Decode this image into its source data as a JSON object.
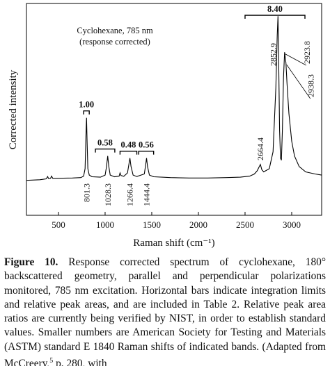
{
  "chart_data": {
    "type": "line",
    "annotation": [
      "Cyclohexane, 785 nm",
      "(response corrected)"
    ],
    "ylabel": "Corrected intensity",
    "xlabel": "Raman shift (cm⁻¹)",
    "x": [
      160,
      300,
      370,
      384,
      395,
      415,
      426,
      440,
      550,
      650,
      740,
      770,
      785,
      795,
      801,
      806,
      815,
      830,
      860,
      950,
      1000,
      1015,
      1028,
      1040,
      1055,
      1100,
      1150,
      1160,
      1170,
      1200,
      1240,
      1255,
      1266,
      1278,
      1300,
      1340,
      1420,
      1435,
      1444,
      1455,
      1475,
      1520,
      1700,
      1900,
      2100,
      2300,
      2450,
      2550,
      2600,
      2630,
      2664,
      2680,
      2700,
      2760,
      2800,
      2830,
      2845,
      2853,
      2860,
      2870,
      2880,
      2890,
      2900,
      2912,
      2924,
      2932,
      2938,
      2950,
      2970,
      3000,
      3030,
      3080,
      3150,
      3250,
      3320
    ],
    "values": [
      16.5,
      16.8,
      17.2,
      18.3,
      17.3,
      17.4,
      18.5,
      17.4,
      17.5,
      17.6,
      17.8,
      18.5,
      22,
      38,
      46,
      36,
      22,
      19,
      18.2,
      18,
      19,
      23,
      28,
      23,
      19,
      18.2,
      18.5,
      20,
      18.8,
      18.4,
      20,
      24,
      27,
      23,
      19,
      18.3,
      19.5,
      24,
      27,
      23,
      19,
      18.2,
      17.8,
      17.6,
      17.6,
      17.8,
      18,
      18.5,
      19.5,
      21,
      24,
      21.5,
      20.5,
      22,
      30,
      60,
      85,
      94,
      75,
      40,
      27,
      26,
      40,
      65,
      77,
      74,
      72,
      62,
      48,
      35,
      28,
      23,
      20.5,
      19.5,
      19
    ],
    "color": "#000000",
    "xlim": [
      157,
      3321
    ],
    "xticks": [
      500,
      1000,
      1500,
      2000,
      2500,
      3000
    ],
    "ylim": [
      0,
      100
    ],
    "peak_labels": [
      801.3,
      1028.3,
      1266.4,
      1444.4,
      2664.4,
      2852.9,
      2923.8,
      2938.3
    ],
    "integration_areas": [
      {
        "value": 1,
        "label": "1.00",
        "limits": [
          770,
          830
        ]
      },
      {
        "value": 0.58,
        "label": "0.58",
        "limits": [
          896,
          1104
        ]
      },
      {
        "value": 0.48,
        "label": "0.48",
        "limits": [
          1160,
          1340
        ]
      },
      {
        "value": 0.56,
        "label": "0.56",
        "limits": [
          1360,
          1520
        ]
      },
      {
        "value": 8.4,
        "label": "8.40",
        "limits": [
          2500,
          3142
        ]
      }
    ]
  },
  "caption": {
    "label": "Figure 10.",
    "text": " Response corrected spectrum of cyclohexane, 180° backscattered geometry, parallel and perpendicular polarizations monitored, 785 nm excitation. Horizontal bars indicate integration limits and relative peak areas, and are included in Table 2. Relative peak area ratios are currently being verified by NIST, in order to establish standard values. Smaller numbers are American Society for Testing and Materials (ASTM) standard E 1840 Raman shifts of indicated bands. (Adapted from McCreery,",
    "sup": "5",
    "text_end": " p. 280, with"
  }
}
